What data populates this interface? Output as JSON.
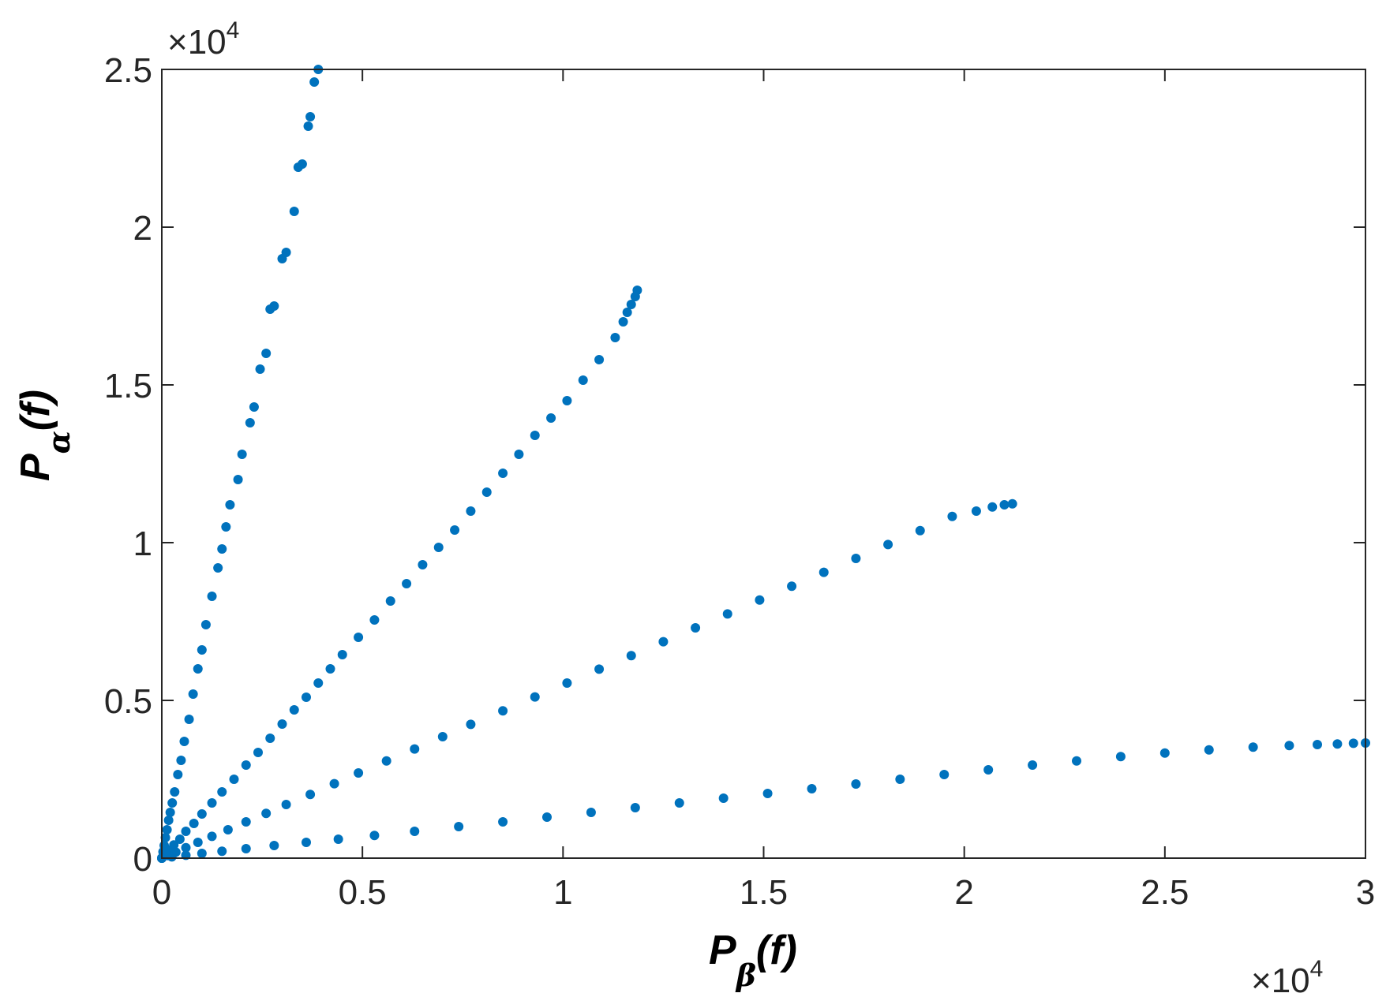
{
  "chart_data": {
    "type": "scatter",
    "xlabel": {
      "main": "P",
      "sub": "β",
      "arg": "(f)"
    },
    "ylabel": {
      "main": "P",
      "sub": "α",
      "arg": "(f)"
    },
    "xlim": [
      0,
      30000
    ],
    "ylim": [
      0,
      25000
    ],
    "x_ticks": [
      0,
      5000,
      10000,
      15000,
      20000,
      25000,
      30000
    ],
    "x_tick_labels": [
      "0",
      "0.5",
      "1",
      "1.5",
      "2",
      "2.5",
      "3"
    ],
    "y_ticks": [
      0,
      5000,
      10000,
      15000,
      20000,
      25000
    ],
    "y_tick_labels": [
      "0",
      "0.5",
      "1",
      "1.5",
      "2",
      "2.5"
    ],
    "x_multiplier": {
      "base": "×10",
      "exp": "4"
    },
    "y_multiplier": {
      "base": "×10",
      "exp": "4"
    },
    "grid": false,
    "marker_color": "#0072BD",
    "series": [
      {
        "points": [
          [
            0,
            0
          ],
          [
            30,
            200
          ],
          [
            60,
            400
          ],
          [
            90,
            650
          ],
          [
            130,
            900
          ],
          [
            170,
            1200
          ],
          [
            210,
            1450
          ],
          [
            260,
            1750
          ],
          [
            320,
            2100
          ],
          [
            400,
            2650
          ],
          [
            480,
            3100
          ],
          [
            560,
            3700
          ],
          [
            680,
            4400
          ],
          [
            780,
            5200
          ],
          [
            900,
            6000
          ],
          [
            1000,
            6600
          ],
          [
            1100,
            7400
          ],
          [
            1250,
            8300
          ],
          [
            1400,
            9200
          ],
          [
            1500,
            9800
          ],
          [
            1600,
            10500
          ],
          [
            1700,
            11200
          ],
          [
            1900,
            12000
          ],
          [
            2000,
            12800
          ],
          [
            2200,
            13800
          ],
          [
            2300,
            14300
          ],
          [
            2450,
            15500
          ],
          [
            2600,
            16000
          ],
          [
            2700,
            17400
          ],
          [
            2800,
            17500
          ],
          [
            3000,
            19000
          ],
          [
            3100,
            19200
          ],
          [
            3300,
            20500
          ],
          [
            3400,
            21900
          ],
          [
            3500,
            22000
          ],
          [
            3650,
            23200
          ],
          [
            3700,
            23500
          ],
          [
            3800,
            24600
          ],
          [
            3900,
            25000
          ]
        ]
      },
      {
        "points": [
          [
            0,
            0
          ],
          [
            80,
            100
          ],
          [
            180,
            250
          ],
          [
            300,
            420
          ],
          [
            450,
            600
          ],
          [
            600,
            850
          ],
          [
            800,
            1100
          ],
          [
            1000,
            1400
          ],
          [
            1250,
            1750
          ],
          [
            1500,
            2100
          ],
          [
            1800,
            2500
          ],
          [
            2100,
            2950
          ],
          [
            2400,
            3350
          ],
          [
            2700,
            3800
          ],
          [
            3000,
            4250
          ],
          [
            3300,
            4700
          ],
          [
            3600,
            5100
          ],
          [
            3900,
            5550
          ],
          [
            4200,
            6000
          ],
          [
            4500,
            6450
          ],
          [
            4900,
            7000
          ],
          [
            5300,
            7550
          ],
          [
            5700,
            8150
          ],
          [
            6100,
            8700
          ],
          [
            6500,
            9300
          ],
          [
            6900,
            9850
          ],
          [
            7300,
            10400
          ],
          [
            7700,
            11000
          ],
          [
            8100,
            11600
          ],
          [
            8500,
            12200
          ],
          [
            8900,
            12800
          ],
          [
            9300,
            13400
          ],
          [
            9700,
            13950
          ],
          [
            10100,
            14500
          ],
          [
            10500,
            15150
          ],
          [
            10900,
            15800
          ],
          [
            11300,
            16500
          ],
          [
            11500,
            17000
          ],
          [
            11600,
            17300
          ],
          [
            11700,
            17550
          ],
          [
            11800,
            17800
          ],
          [
            11850,
            18000
          ]
        ]
      },
      {
        "points": [
          [
            0,
            0
          ],
          [
            150,
            80
          ],
          [
            350,
            190
          ],
          [
            600,
            330
          ],
          [
            900,
            500
          ],
          [
            1250,
            690
          ],
          [
            1650,
            900
          ],
          [
            2100,
            1150
          ],
          [
            2600,
            1420
          ],
          [
            3100,
            1700
          ],
          [
            3700,
            2020
          ],
          [
            4300,
            2360
          ],
          [
            4900,
            2700
          ],
          [
            5600,
            3080
          ],
          [
            6300,
            3460
          ],
          [
            7000,
            3850
          ],
          [
            7700,
            4240
          ],
          [
            8500,
            4670
          ],
          [
            9300,
            5110
          ],
          [
            10100,
            5550
          ],
          [
            10900,
            5990
          ],
          [
            11700,
            6420
          ],
          [
            12500,
            6860
          ],
          [
            13300,
            7300
          ],
          [
            14100,
            7740
          ],
          [
            14900,
            8180
          ],
          [
            15700,
            8620
          ],
          [
            16500,
            9060
          ],
          [
            17300,
            9500
          ],
          [
            18100,
            9940
          ],
          [
            18900,
            10380
          ],
          [
            19700,
            10830
          ],
          [
            20300,
            11000
          ],
          [
            20700,
            11130
          ],
          [
            21000,
            11200
          ],
          [
            21200,
            11230
          ]
        ]
      },
      {
        "points": [
          [
            0,
            0
          ],
          [
            250,
            40
          ],
          [
            600,
            90
          ],
          [
            1000,
            150
          ],
          [
            1500,
            220
          ],
          [
            2100,
            300
          ],
          [
            2800,
            400
          ],
          [
            3600,
            500
          ],
          [
            4400,
            600
          ],
          [
            5300,
            720
          ],
          [
            6300,
            850
          ],
          [
            7400,
            1000
          ],
          [
            8500,
            1150
          ],
          [
            9600,
            1300
          ],
          [
            10700,
            1450
          ],
          [
            11800,
            1600
          ],
          [
            12900,
            1750
          ],
          [
            14000,
            1900
          ],
          [
            15100,
            2050
          ],
          [
            16200,
            2200
          ],
          [
            17300,
            2350
          ],
          [
            18400,
            2500
          ],
          [
            19500,
            2650
          ],
          [
            20600,
            2800
          ],
          [
            21700,
            2950
          ],
          [
            22800,
            3080
          ],
          [
            23900,
            3220
          ],
          [
            25000,
            3330
          ],
          [
            26100,
            3430
          ],
          [
            27200,
            3520
          ],
          [
            28100,
            3570
          ],
          [
            28800,
            3600
          ],
          [
            29300,
            3620
          ],
          [
            29700,
            3640
          ],
          [
            30000,
            3650
          ]
        ]
      }
    ]
  }
}
